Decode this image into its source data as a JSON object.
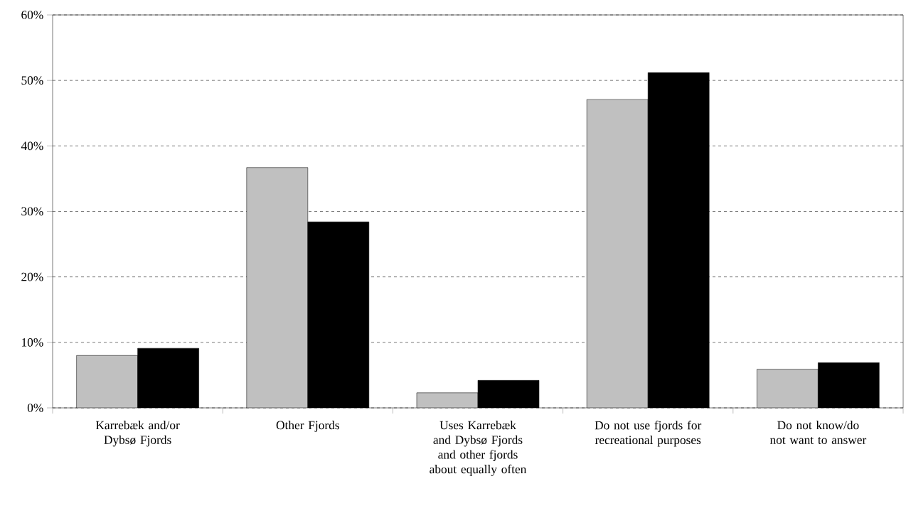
{
  "chart_data": {
    "type": "bar",
    "categories": [
      "Karrebæk and/or Dybsø Fjords",
      "Other Fjords",
      "Uses Karrebæk and Dybsø Fjords and other fjords about equally often",
      "Do not use fjords for recreational purposes",
      "Do not know/do not want to answer"
    ],
    "series": [
      {
        "color": "#c0c0c0",
        "values": [
          8.0,
          36.7,
          2.3,
          47.1,
          5.9
        ]
      },
      {
        "color": "#000000",
        "values": [
          9.1,
          28.4,
          4.2,
          51.2,
          6.9
        ]
      }
    ],
    "ylim": [
      0,
      60
    ],
    "yticks": [
      {
        "value": 0,
        "label": "0%"
      },
      {
        "value": 10,
        "label": "10%"
      },
      {
        "value": 20,
        "label": "20%"
      },
      {
        "value": 30,
        "label": "30%"
      },
      {
        "value": 40,
        "label": "40%"
      },
      {
        "value": 50,
        "label": "50%"
      },
      {
        "value": 60,
        "label": "60%"
      }
    ],
    "grid": "y"
  }
}
